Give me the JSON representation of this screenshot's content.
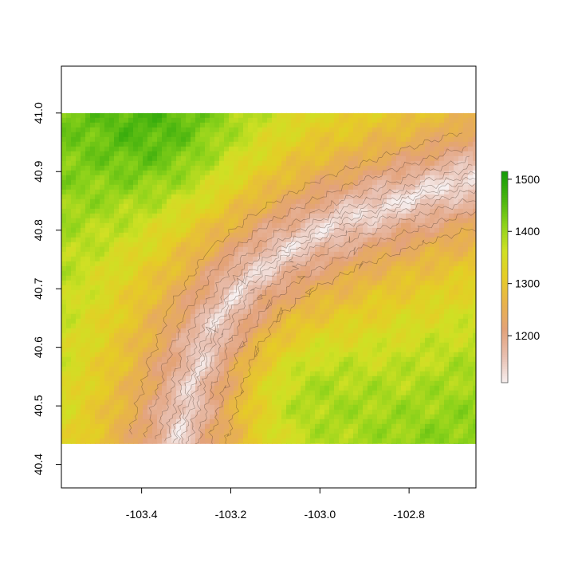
{
  "chart_data": {
    "type": "heatmap",
    "title": "",
    "xlabel": "",
    "ylabel": "",
    "x_ticks": [
      -103.4,
      -103.2,
      -103.0,
      -102.8
    ],
    "x_tick_labels": [
      "-103.4",
      "-103.2",
      "-103.0",
      "-102.8"
    ],
    "y_ticks": [
      40.4,
      40.5,
      40.6,
      40.7,
      40.8,
      40.9,
      41.0
    ],
    "y_tick_labels": [
      "40.4",
      "40.5",
      "40.6",
      "40.7",
      "40.8",
      "40.9",
      "41.0"
    ],
    "xlim": [
      -103.58,
      -102.65
    ],
    "ylim": [
      40.36,
      41.08
    ],
    "raster_extent": {
      "x": [
        -103.58,
        -102.65
      ],
      "y": [
        40.435,
        41.0
      ]
    },
    "value_range": [
      1110,
      1515
    ],
    "legend": {
      "position": "right",
      "ticks": [
        1200,
        1300,
        1400,
        1500
      ],
      "tick_labels": [
        "1200",
        "1300",
        "1400",
        "1500"
      ]
    },
    "color_ramp": [
      "#f7f0f0",
      "#e8bfb0",
      "#e3a27a",
      "#e8b24c",
      "#e6cc26",
      "#cfe024",
      "#8cd21a",
      "#46b30f",
      "#149a08"
    ],
    "contours": true,
    "grid": false,
    "features": {
      "valley_center": [
        [
          -102.65,
          40.89
        ],
        [
          -102.8,
          40.855
        ],
        [
          -102.95,
          40.815
        ],
        [
          -103.08,
          40.765
        ],
        [
          -103.17,
          40.71
        ],
        [
          -103.24,
          40.63
        ],
        [
          -103.28,
          40.55
        ],
        [
          -103.31,
          40.47
        ],
        [
          -103.32,
          40.435
        ]
      ],
      "highland_northwest": {
        "lon": -103.35,
        "lat": 40.96,
        "value": 1470
      },
      "highland_southeast": {
        "lon": -103.07,
        "lat": 40.53,
        "value": 1460
      },
      "lowest_point": {
        "lon": -102.66,
        "lat": 40.9,
        "value": 1115
      }
    }
  }
}
